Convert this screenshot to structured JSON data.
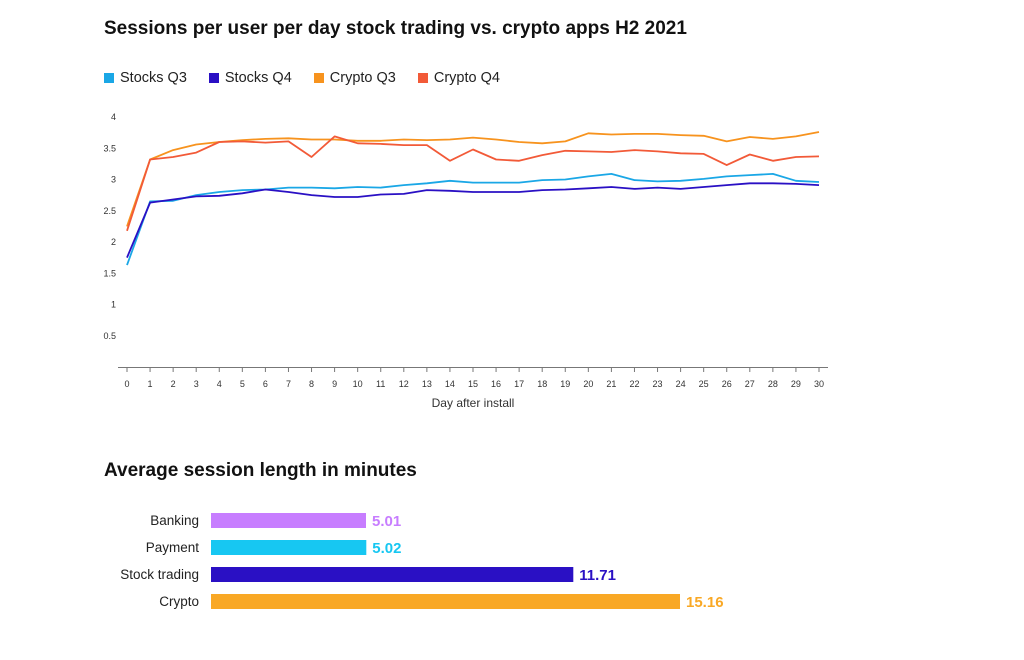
{
  "chart_data": [
    {
      "type": "line",
      "title": "Sessions per user per day stock trading vs. crypto apps H2 2021",
      "xlabel": "Day after install",
      "ylabel": "",
      "ylim": [
        0,
        4
      ],
      "yticks": [
        "0.5",
        "1",
        "1.5",
        "2",
        "2.5",
        "3",
        "3.5",
        "4"
      ],
      "x": [
        0,
        1,
        2,
        3,
        4,
        5,
        6,
        7,
        8,
        9,
        10,
        11,
        12,
        13,
        14,
        15,
        16,
        17,
        18,
        19,
        20,
        21,
        22,
        23,
        24,
        25,
        26,
        27,
        28,
        29,
        30
      ],
      "legend_position": "top-left",
      "series": [
        {
          "name": "Stocks Q3",
          "color": "#1aa7e6",
          "values": [
            1.63,
            2.65,
            2.66,
            2.75,
            2.8,
            2.83,
            2.84,
            2.87,
            2.87,
            2.86,
            2.88,
            2.87,
            2.91,
            2.94,
            2.98,
            2.95,
            2.95,
            2.95,
            2.99,
            3.0,
            3.05,
            3.09,
            2.99,
            2.97,
            2.98,
            3.01,
            3.05,
            3.07,
            3.09,
            2.98,
            2.96
          ]
        },
        {
          "name": "Stocks Q4",
          "color": "#2a10c4",
          "values": [
            1.75,
            2.63,
            2.68,
            2.73,
            2.74,
            2.78,
            2.84,
            2.8,
            2.75,
            2.72,
            2.72,
            2.76,
            2.77,
            2.83,
            2.82,
            2.8,
            2.8,
            2.8,
            2.83,
            2.84,
            2.86,
            2.88,
            2.85,
            2.87,
            2.85,
            2.88,
            2.91,
            2.94,
            2.94,
            2.93,
            2.91
          ]
        },
        {
          "name": "Crypto Q3",
          "color": "#f7931e",
          "values": [
            2.25,
            3.32,
            3.47,
            3.56,
            3.6,
            3.63,
            3.65,
            3.66,
            3.64,
            3.64,
            3.62,
            3.62,
            3.64,
            3.63,
            3.64,
            3.67,
            3.64,
            3.6,
            3.58,
            3.61,
            3.74,
            3.72,
            3.73,
            3.73,
            3.71,
            3.7,
            3.61,
            3.68,
            3.65,
            3.69,
            3.76
          ]
        },
        {
          "name": "Crypto Q4",
          "color": "#f25a38",
          "values": [
            2.18,
            3.32,
            3.36,
            3.43,
            3.6,
            3.61,
            3.59,
            3.61,
            3.36,
            3.69,
            3.58,
            3.57,
            3.55,
            3.55,
            3.3,
            3.48,
            3.32,
            3.3,
            3.39,
            3.46,
            3.45,
            3.44,
            3.47,
            3.45,
            3.42,
            3.41,
            3.23,
            3.4,
            3.3,
            3.36,
            3.37
          ]
        }
      ]
    },
    {
      "type": "bar",
      "orientation": "horizontal",
      "title": "Average session length in minutes",
      "categories": [
        "Banking",
        "Payment",
        "Stock trading",
        "Crypto"
      ],
      "values": [
        5.01,
        5.02,
        11.71,
        15.16
      ],
      "value_labels": [
        "5.01",
        "5.02",
        "11.71",
        "15.16"
      ],
      "colors": [
        "#c77dff",
        "#17c7f2",
        "#2a10c4",
        "#f9a825"
      ],
      "xlim": [
        0,
        15.16
      ]
    }
  ]
}
